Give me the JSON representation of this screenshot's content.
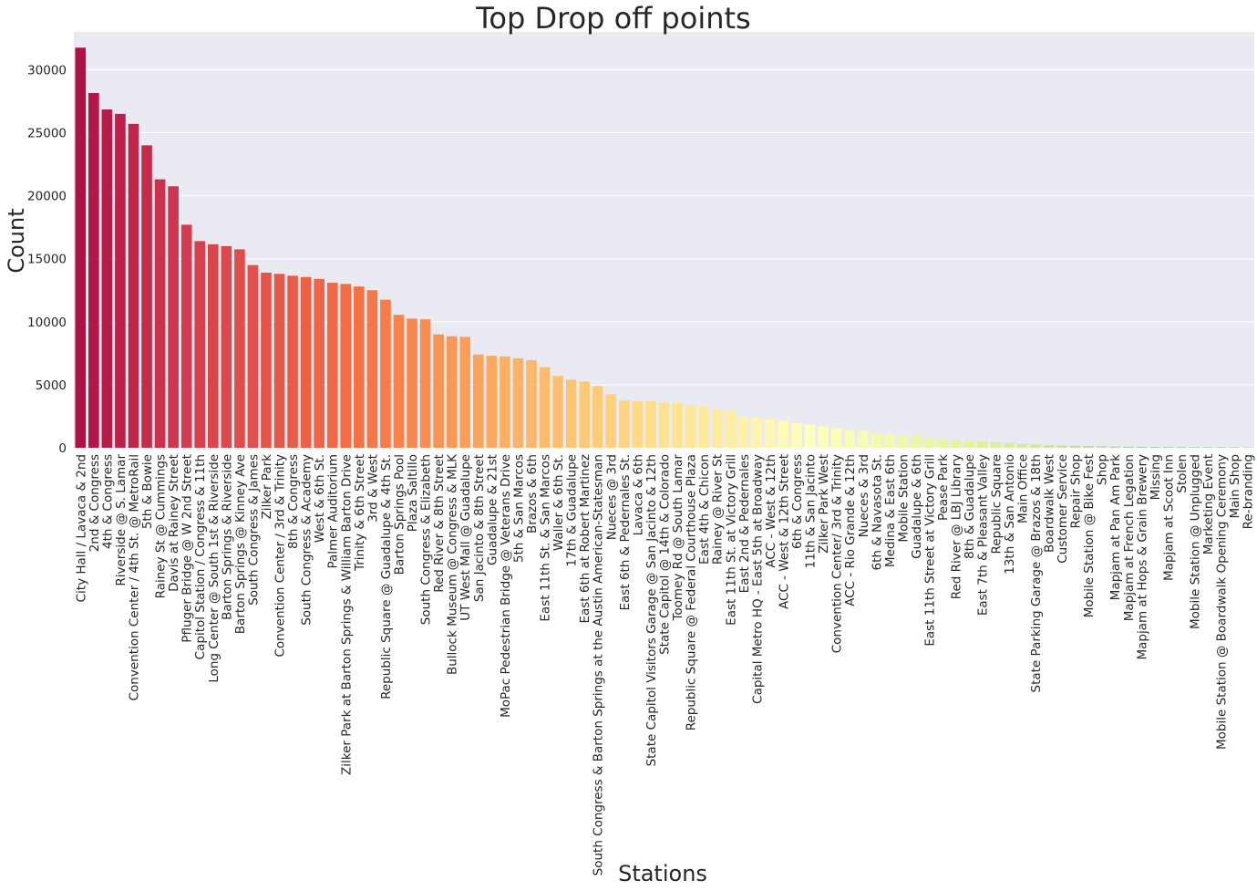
{
  "chart_data": {
    "type": "bar",
    "title": "Top Drop off points",
    "xlabel": "Stations",
    "ylabel": "Count",
    "ylim": [
      0,
      33000
    ],
    "yticks": [
      0,
      5000,
      10000,
      15000,
      20000,
      25000,
      30000
    ],
    "grid": true,
    "legend": "none",
    "categories": [
      "City Hall / Lavaca & 2nd",
      "2nd & Congress",
      "4th & Congress",
      "Riverside @ S. Lamar",
      "Convention Center / 4th St. @ MetroRail",
      "5th & Bowie",
      "Rainey St @ Cummings",
      "Davis at Rainey Street",
      "Pfluger Bridge @ W 2nd Street",
      "Capitol Station / Congress & 11th",
      "Long Center @ South 1st & Riverside",
      "Barton Springs & Riverside",
      "Barton Springs @ Kinney Ave",
      "South Congress & James",
      "Zilker Park",
      "Convention Center / 3rd & Trinity",
      "8th & Congress",
      "South Congress & Academy",
      "West & 6th St.",
      "Palmer Auditorium",
      "Zilker Park at Barton Springs & William Barton Drive",
      "Trinity & 6th Street",
      "3rd & West",
      "Republic Square @ Guadalupe & 4th St.",
      "Barton Springs Pool",
      "Plaza Saltillo",
      "South Congress & Elizabeth",
      "Red River & 8th Street",
      "Bullock Museum @ Congress & MLK",
      "UT West Mall @ Guadalupe",
      "San Jacinto & 8th Street",
      "Guadalupe & 21st",
      "MoPac Pedestrian Bridge @ Veterans Drive",
      "5th & San Marcos",
      "Brazos & 6th",
      "East 11th St. & San Marcos",
      "Waller & 6th St.",
      "17th & Guadalupe",
      "East 6th at Robert Martinez",
      "South Congress & Barton Springs at the Austin American-Statesman",
      "Nueces @ 3rd",
      "East 6th & Pedernales St.",
      "Lavaca & 6th",
      "State Capitol Visitors Garage @ San Jacinto & 12th",
      "State Capitol @ 14th & Colorado",
      "Toomey Rd @ South Lamar",
      "Republic Square @ Federal Courthouse Plaza",
      "East 4th & Chicon",
      "Rainey @ River St",
      "East 11th St. at Victory Grill",
      "East 2nd & Pedernales",
      "Capital Metro HQ - East 5th at Broadway",
      "ACC - West & 12th",
      "ACC - West & 12th Street",
      "6th & Congress",
      "11th & San Jacinto",
      "Zilker Park West",
      "Convention Center/ 3rd & Trinity",
      "ACC - Rio Grande & 12th",
      "Nueces & 3rd",
      "6th & Navasota St.",
      "Medina & East 6th",
      "Mobile Station",
      "Guadalupe & 6th",
      "East 11th Street at Victory Grill",
      "Pease Park",
      "Red River @ LBJ Library",
      "8th & Guadalupe",
      "East 7th & Pleasant Valley",
      "Republic Square",
      "13th & San Antonio",
      "Main Office",
      "State Parking Garage @ Brazos & 18th",
      "Boardwalk West",
      "Customer Service",
      "Repair Shop",
      "Mobile Station @ Bike Fest",
      "Shop",
      "Mapjam at Pan Am Park",
      "Mapjam at French Legation",
      "Mapjam at Hops & Grain Brewery",
      "Missing",
      "Mapjam at Scoot Inn",
      "Stolen",
      "Mobile Station @ Unplugged",
      "Marketing Event",
      "Mobile Station @ Boardwalk Opening Ceremony",
      "Main Shop",
      "Re-branding"
    ],
    "values": [
      31750,
      28150,
      26850,
      26500,
      25700,
      24000,
      21300,
      20750,
      17700,
      16400,
      16150,
      16000,
      15750,
      14500,
      13900,
      13800,
      13650,
      13550,
      13400,
      13100,
      13000,
      12800,
      12500,
      11750,
      10550,
      10250,
      10200,
      9000,
      8850,
      8800,
      7400,
      7300,
      7250,
      7100,
      6950,
      6400,
      5700,
      5400,
      5250,
      4900,
      4250,
      3750,
      3700,
      3700,
      3600,
      3550,
      3350,
      3300,
      3050,
      2950,
      2450,
      2400,
      2250,
      2150,
      1950,
      1850,
      1700,
      1550,
      1400,
      1350,
      1100,
      1050,
      1000,
      950,
      750,
      650,
      600,
      550,
      500,
      450,
      400,
      300,
      250,
      200,
      180,
      160,
      140,
      120,
      100,
      90,
      80,
      70,
      60,
      50,
      45,
      40,
      35,
      30,
      25
    ]
  }
}
